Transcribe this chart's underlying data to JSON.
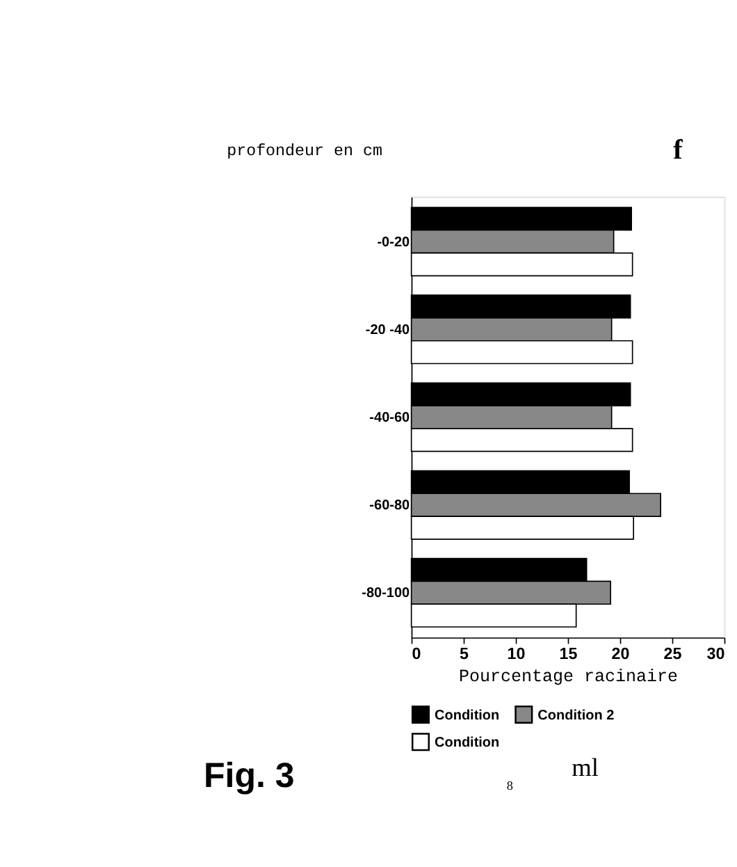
{
  "chart_data": {
    "type": "bar",
    "orientation": "horizontal",
    "title": "f",
    "xlabel": "Pourcentage racinaire",
    "ylabel": "profondeur en cm",
    "categories": [
      "-0-20",
      "-20 -40",
      "-40-60",
      "-60-80",
      "-80-100"
    ],
    "series": [
      {
        "name": "Condition",
        "color": "#000000",
        "values": [
          21.1,
          21.0,
          21.0,
          20.9,
          16.8
        ]
      },
      {
        "name": "Condition 2",
        "color": "#888888",
        "values": [
          19.4,
          19.2,
          19.2,
          23.9,
          19.1
        ]
      },
      {
        "name": "Condition",
        "color": "#ffffff",
        "values": [
          21.2,
          21.2,
          21.2,
          21.3,
          15.8
        ]
      }
    ],
    "xlim": [
      0,
      30
    ],
    "xticks": [
      0,
      5,
      10,
      15,
      20,
      25,
      30
    ],
    "grid": false,
    "legend": "bottom",
    "annotations": [
      "Fig. 3",
      "ml",
      "8"
    ]
  }
}
